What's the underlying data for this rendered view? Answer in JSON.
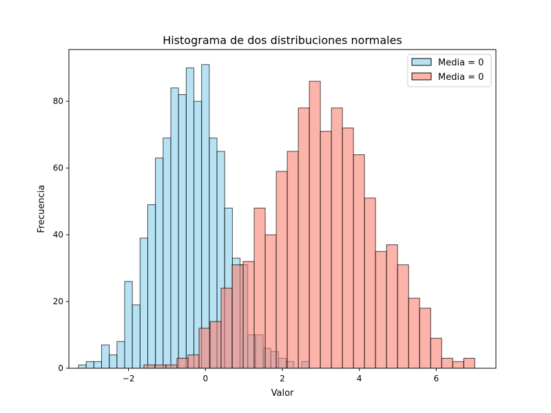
{
  "chart_data": {
    "type": "bar",
    "title": "Histograma de dos distribuciones normales",
    "xlabel": "Valor",
    "ylabel": "Frecuencia",
    "xlim": [
      -3.55,
      7.55
    ],
    "ylim": [
      0,
      95.5
    ],
    "xticks": [
      -2,
      0,
      2,
      4,
      6
    ],
    "xtick_labels": [
      "−2",
      "0",
      "2",
      "4",
      "6"
    ],
    "yticks": [
      0,
      20,
      40,
      60,
      80
    ],
    "yticks_labels": [
      "0",
      "20",
      "40",
      "60",
      "80"
    ],
    "grid": false,
    "legend_position": "top-right",
    "series": [
      {
        "name": "Media = 0",
        "color": "#87CEEB",
        "edge_color": "#000000",
        "alpha": 0.6,
        "bin_start": -3.3,
        "bin_width": 0.2,
        "values": [
          1,
          2,
          2,
          7,
          4,
          8,
          26,
          19,
          39,
          49,
          63,
          69,
          84,
          82,
          90,
          80,
          91,
          69,
          65,
          48,
          33,
          31,
          10,
          10,
          6,
          5,
          3,
          2,
          0,
          2
        ]
      },
      {
        "name": "Media = 0",
        "color": "#FA8072",
        "edge_color": "#000000",
        "alpha": 0.6,
        "bin_start": -1.6,
        "bin_width": 0.2867,
        "values": [
          1,
          1,
          1,
          3,
          4,
          12,
          14,
          24,
          31,
          32,
          48,
          40,
          59,
          65,
          78,
          86,
          71,
          78,
          72,
          64,
          51,
          35,
          37,
          31,
          21,
          18,
          9,
          3,
          2,
          3
        ]
      }
    ]
  }
}
